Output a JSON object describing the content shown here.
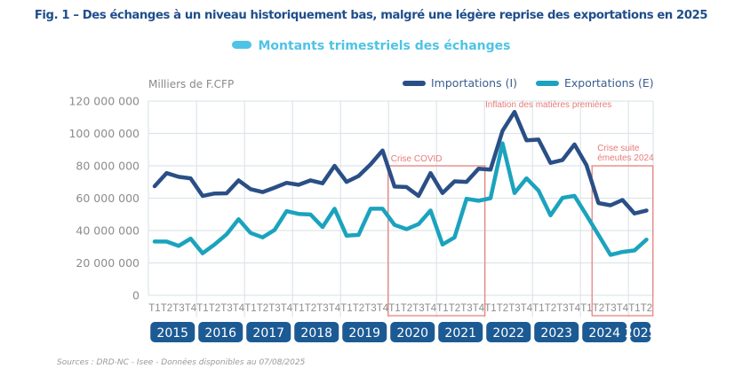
{
  "header": {
    "title": "Fig. 1 – Des échanges à un niveau historiquement bas, malgré une légère reprise des exportations en 2025",
    "subtitle": "Montants trimestriels des échanges"
  },
  "footer": {
    "source": "Sources : DRD-NC - Isee - Données disponibles au 07/08/2025"
  },
  "colors": {
    "imports": "#2a4f86",
    "exports": "#1ba3bd",
    "title": "#1f4e8c",
    "subtitle": "#4fc3e6",
    "annotation": "#e77b78",
    "year_badge": "#1c5a94",
    "grid": "#dde6ea"
  },
  "chart_data": {
    "type": "line",
    "title": "Fig. 1 – Des échanges à un niveau historiquement bas, malgré une légère reprise des exportations en 2025",
    "subtitle": "Montants trimestriels des échanges",
    "ylabel": "Milliers de F.CFP",
    "xlabel": "",
    "ylim": [
      0,
      120000000
    ],
    "yticks": [
      0,
      20000000,
      40000000,
      60000000,
      80000000,
      100000000,
      120000000
    ],
    "ytick_labels": [
      "0",
      "20 000 000",
      "40 000 000",
      "60 000 000",
      "80 000 000",
      "100 000 000",
      "120 000 000"
    ],
    "grid": true,
    "legend_position": "top-right",
    "years": [
      "2015",
      "2016",
      "2017",
      "2018",
      "2019",
      "2020",
      "2021",
      "2022",
      "2023",
      "2024",
      "2025"
    ],
    "quarters_per_year": [
      4,
      4,
      4,
      4,
      4,
      4,
      4,
      4,
      4,
      4,
      2
    ],
    "x": [
      "T1",
      "T2",
      "T3",
      "T4",
      "T1",
      "T2",
      "T3",
      "T4",
      "T1",
      "T2",
      "T3",
      "T4",
      "T1",
      "T2",
      "T3",
      "T4",
      "T1",
      "T2",
      "T3",
      "T4",
      "T1",
      "T2",
      "T3",
      "T4",
      "T1",
      "T2",
      "T3",
      "T4",
      "T1",
      "T2",
      "T3",
      "T4",
      "T1",
      "T2",
      "T3",
      "T4",
      "T1",
      "T2",
      "T3",
      "T4",
      "T1",
      "T2"
    ],
    "series": [
      {
        "name": "Importations (I)",
        "color": "#2a4f86",
        "values": [
          67400000,
          75500000,
          73200000,
          72300000,
          61400000,
          62900000,
          63000000,
          71000000,
          65600000,
          63800000,
          66500000,
          69500000,
          68300000,
          71000000,
          69200000,
          80000000,
          70100000,
          73700000,
          80900000,
          89500000,
          67200000,
          66900000,
          61400000,
          75500000,
          63200000,
          70400000,
          70100000,
          78200000,
          77700000,
          101600000,
          113300000,
          95700000,
          96200000,
          81800000,
          83600000,
          93200000,
          80400000,
          57000000,
          55600000,
          58900000,
          50600000,
          52400000
        ]
      },
      {
        "name": "Exportations (E)",
        "color": "#1ba3bd",
        "values": [
          33200000,
          33200000,
          30500000,
          35000000,
          26000000,
          31400000,
          37700000,
          47000000,
          38500000,
          35800000,
          40400000,
          52000000,
          50300000,
          49900000,
          42200000,
          53500000,
          36800000,
          37300000,
          53500000,
          53500000,
          43500000,
          40900000,
          44000000,
          52400000,
          31400000,
          35800000,
          59600000,
          58400000,
          60000000,
          93900000,
          63200000,
          72300000,
          64700000,
          49400000,
          60200000,
          61400000,
          49500000,
          37300000,
          25000000,
          26800000,
          27700000,
          34400000
        ]
      }
    ],
    "annotations": [
      {
        "label": "Crise COVID",
        "from_index": 20,
        "to_index": 27,
        "top_value": 80000000
      },
      {
        "label": "Inflation des matières premières",
        "from_index": 28,
        "to_index": 35,
        "top_value": null
      },
      {
        "label_lines": [
          "Crise suite",
          "émeutes 2024"
        ],
        "from_index": 37,
        "to_index": 41,
        "top_value": 80000000
      }
    ]
  }
}
